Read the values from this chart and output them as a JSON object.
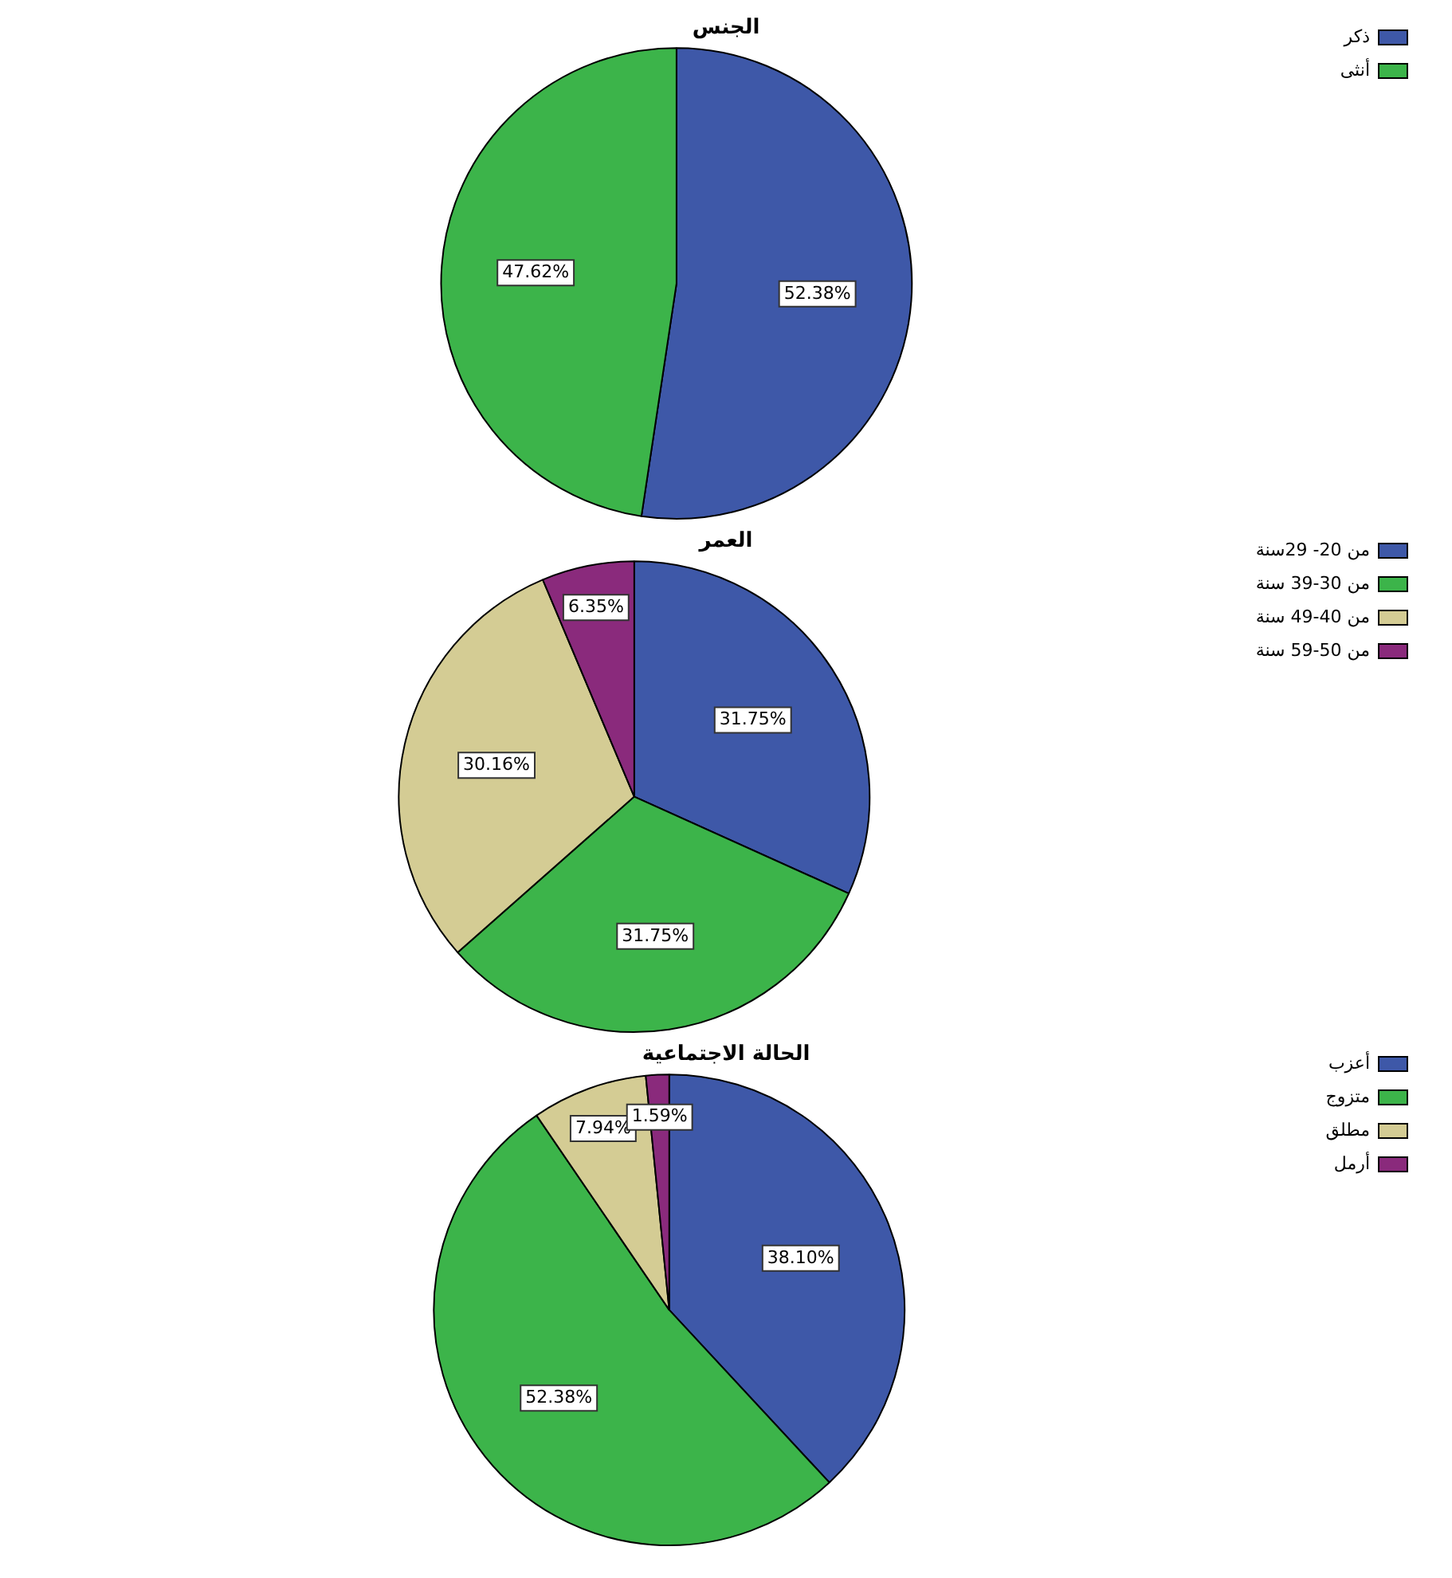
{
  "chart_data": [
    {
      "type": "pie",
      "title": "الجنس",
      "categories": [
        "ذكر",
        "أنثى"
      ],
      "values": [
        52.38,
        47.62
      ],
      "colors": [
        "#3e58a8",
        "#3cb44a"
      ],
      "value_labels": [
        "52.38%",
        "47.62%"
      ],
      "legend": "top right"
    },
    {
      "type": "pie",
      "title": "العمر",
      "categories": [
        "من 20- 29سنة",
        "من 30-39 سنة",
        "من 40-49 سنة",
        "من 50-59 سنة"
      ],
      "values": [
        31.75,
        31.75,
        30.16,
        6.35
      ],
      "colors": [
        "#3e58a8",
        "#3cb44a",
        "#d4cc94",
        "#8a2a7c"
      ],
      "value_labels": [
        "31.75%",
        "31.75%",
        "30.16%",
        "6.35%"
      ],
      "legend": "top right"
    },
    {
      "type": "pie",
      "title": "الحالة الاجتماعية",
      "categories": [
        "أعزب",
        "متزوج",
        "مطلق",
        "أرمل"
      ],
      "values": [
        38.1,
        52.38,
        7.94,
        1.59
      ],
      "colors": [
        "#3e58a8",
        "#3cb44a",
        "#d4cc94",
        "#8a2a7c"
      ],
      "value_labels": [
        "38.10%",
        "52.38%",
        "7.94%",
        "1.59%"
      ],
      "legend": "top right"
    }
  ]
}
